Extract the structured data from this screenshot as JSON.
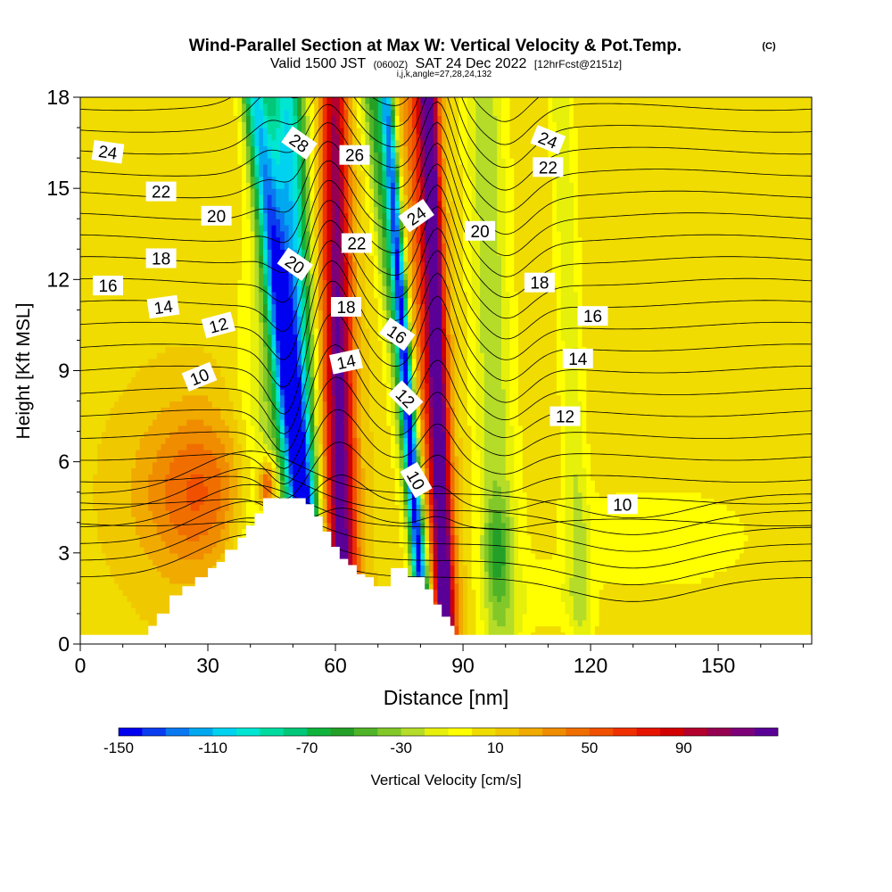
{
  "header": {
    "title": "Wind-Parallel Section at Max W: Vertical Velocity & Pot.Temp.",
    "title_mark": "(C)",
    "valid_prefix": "Valid 1500 JST",
    "valid_utc": "(0600Z)",
    "valid_date": "SAT 24 Dec 2022",
    "valid_fcst": "[12hrFcst@2151z]",
    "indices": "i,j,k,angle=27,28,24,132"
  },
  "chart_data": {
    "type": "heatmap",
    "xlabel": "Distance [nm]",
    "ylabel": "Height [Kft MSL]",
    "xlim": [
      0,
      172
    ],
    "ylim": [
      0,
      18
    ],
    "xticks": [
      "0",
      "30",
      "60",
      "90",
      "120",
      "150"
    ],
    "xtick_values": [
      0,
      30,
      60,
      90,
      120,
      150
    ],
    "yticks": [
      "0",
      "3",
      "6",
      "9",
      "12",
      "15",
      "18"
    ],
    "ytick_values": [
      0,
      3,
      6,
      9,
      12,
      15,
      18
    ],
    "colorbar": {
      "label": "Vertical Velocity [cm/s]",
      "min": -150,
      "step": 10,
      "tick_labels": [
        "-150",
        "-110",
        "-70",
        "-30",
        "10",
        "50",
        "90"
      ],
      "tick_values": [
        -150,
        -110,
        -70,
        -30,
        10,
        50,
        90
      ],
      "colors": [
        "#0000f0",
        "#0a3cf0",
        "#0a78f0",
        "#00a8f0",
        "#00d2f0",
        "#00e6d2",
        "#00dca0",
        "#00c878",
        "#10b43c",
        "#24a028",
        "#50b428",
        "#82c828",
        "#b4dc28",
        "#e6f00a",
        "#ffff00",
        "#f0dc00",
        "#f0c800",
        "#f0aa00",
        "#f08c00",
        "#f06e00",
        "#f05000",
        "#f03000",
        "#e61400",
        "#d20000",
        "#b4002d",
        "#960050",
        "#7d0078",
        "#5a0096"
      ]
    },
    "terrain": {
      "x": [
        0,
        15,
        16,
        18,
        21,
        24,
        27,
        30,
        32,
        34,
        37,
        39,
        41,
        43,
        45,
        47,
        49,
        51,
        53,
        55,
        57,
        59,
        61,
        63,
        65,
        67,
        69,
        71,
        73,
        75,
        77,
        79,
        81,
        83,
        85,
        87,
        88,
        90,
        172
      ],
      "height": [
        0.3,
        0.3,
        0.6,
        1.0,
        1.6,
        1.9,
        2.2,
        2.5,
        2.7,
        3.1,
        3.5,
        3.9,
        4.3,
        4.8,
        4.8,
        4.8,
        4.8,
        4.8,
        4.6,
        4.2,
        3.7,
        3.2,
        2.8,
        2.6,
        2.3,
        2.2,
        1.9,
        1.9,
        2.5,
        2.5,
        2.2,
        2.2,
        1.8,
        1.3,
        0.9,
        0.6,
        0.3,
        0.3,
        0.3
      ]
    },
    "w_features": [
      {
        "kind": "plume",
        "w": -45,
        "x_bottom": 42,
        "x_top": 53,
        "halfwidth": 9
      },
      {
        "kind": "plume",
        "w": -100,
        "x_bottom": 56,
        "x_top": 41,
        "halfwidth": 3
      },
      {
        "kind": "plume",
        "w": -75,
        "x_bottom": 55,
        "x_top": 48,
        "halfwidth": 4
      },
      {
        "kind": "plume",
        "w": 50,
        "x_bottom": 61,
        "x_top": 57,
        "halfwidth": 5
      },
      {
        "kind": "plume",
        "w": 80,
        "x_bottom": 62,
        "x_top": 60,
        "halfwidth": 3
      },
      {
        "kind": "plume",
        "w": -60,
        "x_bottom": 82,
        "x_top": 69,
        "halfwidth": 3
      },
      {
        "kind": "plume",
        "w": -110,
        "x_bottom": 81,
        "x_top": 72,
        "halfwidth": 1.5
      },
      {
        "kind": "plume",
        "w": 60,
        "x_bottom": 85,
        "x_top": 80,
        "halfwidth": 4
      },
      {
        "kind": "plume",
        "w": 95,
        "x_bottom": 86,
        "x_top": 82,
        "halfwidth": 2
      },
      {
        "kind": "plume",
        "w": -35,
        "x_bottom": 99,
        "x_top": 95,
        "halfwidth": 5
      },
      {
        "kind": "plume",
        "w": -25,
        "x_bottom": 118,
        "x_top": 113,
        "halfwidth": 3
      },
      {
        "kind": "blob",
        "w": 45,
        "x": 28,
        "y": 5,
        "sx": 14,
        "sy": 2.8
      },
      {
        "kind": "blob",
        "w": 75,
        "x": 44,
        "y": 5.2,
        "sx": 2.2,
        "sy": 0.9
      },
      {
        "kind": "blob",
        "w": -30,
        "x": 98,
        "y": 3,
        "sx": 3,
        "sy": 1.5
      },
      {
        "kind": "blob",
        "w": -15,
        "x": 136,
        "y": 3.5,
        "sx": 26,
        "sy": 2
      },
      {
        "kind": "blob",
        "w": -15,
        "x": 110,
        "y": 1.5,
        "sx": 8,
        "sy": 1
      }
    ],
    "theta_contours": {
      "interval": 1,
      "levels": [
        4,
        5,
        6,
        7,
        8,
        9,
        10,
        11,
        12,
        13,
        14,
        15,
        16,
        17,
        18,
        19,
        20,
        21,
        22,
        23,
        24,
        25,
        26,
        27,
        28,
        29,
        30
      ],
      "labels": [
        {
          "text": "24",
          "x": 6.5,
          "y": 16.2,
          "angle": 8
        },
        {
          "text": "22",
          "x": 19,
          "y": 14.9,
          "angle": 0
        },
        {
          "text": "20",
          "x": 32,
          "y": 14.1,
          "angle": 0
        },
        {
          "text": "18",
          "x": 19,
          "y": 12.7,
          "angle": 0
        },
        {
          "text": "16",
          "x": 6.5,
          "y": 11.8,
          "angle": 0
        },
        {
          "text": "14",
          "x": 19.5,
          "y": 11.1,
          "angle": -8
        },
        {
          "text": "12",
          "x": 32.5,
          "y": 10.5,
          "angle": -15
        },
        {
          "text": "10",
          "x": 28,
          "y": 8.8,
          "angle": -22
        },
        {
          "text": "28",
          "x": 51.5,
          "y": 16.5,
          "angle": 35
        },
        {
          "text": "26",
          "x": 64.5,
          "y": 16.1,
          "angle": 0
        },
        {
          "text": "20",
          "x": 50.5,
          "y": 12.5,
          "angle": 35
        },
        {
          "text": "22",
          "x": 65,
          "y": 13.2,
          "angle": 0
        },
        {
          "text": "18",
          "x": 62.5,
          "y": 11.1,
          "angle": 0
        },
        {
          "text": "14",
          "x": 62.5,
          "y": 9.3,
          "angle": -12
        },
        {
          "text": "16",
          "x": 74.5,
          "y": 10.2,
          "angle": 35
        },
        {
          "text": "24",
          "x": 79,
          "y": 14.1,
          "angle": -35
        },
        {
          "text": "12",
          "x": 76.5,
          "y": 8.1,
          "angle": 45
        },
        {
          "text": "10",
          "x": 79,
          "y": 5.4,
          "angle": 60
        },
        {
          "text": "20",
          "x": 94,
          "y": 13.6,
          "angle": 0
        },
        {
          "text": "24",
          "x": 110,
          "y": 16.6,
          "angle": 22
        },
        {
          "text": "22",
          "x": 110,
          "y": 15.7,
          "angle": 0
        },
        {
          "text": "18",
          "x": 108,
          "y": 11.9,
          "angle": 0
        },
        {
          "text": "16",
          "x": 120.5,
          "y": 10.8,
          "angle": 0
        },
        {
          "text": "14",
          "x": 117,
          "y": 9.4,
          "angle": 0
        },
        {
          "text": "12",
          "x": 114,
          "y": 7.5,
          "angle": 0
        },
        {
          "text": "10",
          "x": 127.5,
          "y": 4.6,
          "angle": 0
        }
      ]
    }
  }
}
